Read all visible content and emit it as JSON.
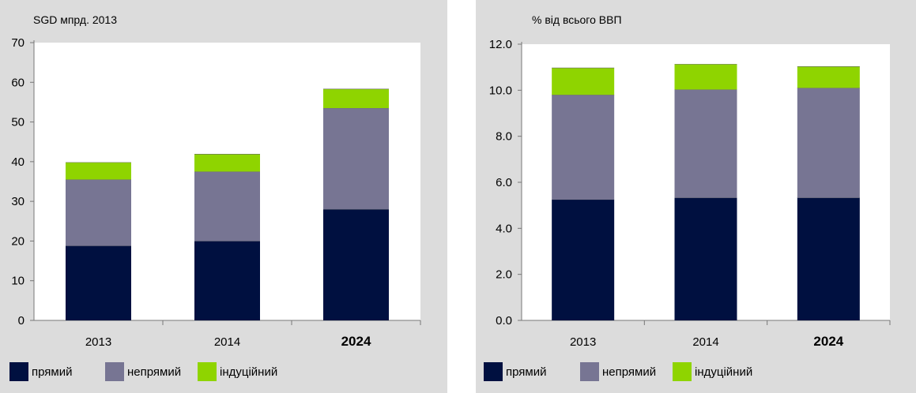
{
  "legend": [
    {
      "label": "прямий",
      "color": "#001040"
    },
    {
      "label": "непрямий",
      "color": "#777593"
    },
    {
      "label": "індуційний",
      "color": "#8fd400"
    }
  ],
  "chart_data": [
    {
      "type": "bar",
      "stacked": true,
      "unit_label": "SGD мпрд. 2013",
      "categories": [
        "2013",
        "2014",
        "2024"
      ],
      "bold_categories": [
        "2024"
      ],
      "yticks": [
        "0",
        "10",
        "20",
        "30",
        "40",
        "50",
        "60",
        "70"
      ],
      "ylim": [
        0,
        70
      ],
      "grid": false,
      "legend_position": "bottom",
      "series": [
        {
          "name": "прямий",
          "color": "#001040",
          "values": [
            18.8,
            20.0,
            28.0
          ]
        },
        {
          "name": "непрямий",
          "color": "#777593",
          "values": [
            16.7,
            17.5,
            25.5
          ]
        },
        {
          "name": "індуційний",
          "color": "#8fd400",
          "values": [
            4.3,
            4.4,
            4.8
          ]
        }
      ]
    },
    {
      "type": "bar",
      "stacked": true,
      "unit_label": "% від всього ВВП",
      "categories": [
        "2013",
        "2014",
        "2024"
      ],
      "bold_categories": [
        "2024"
      ],
      "yticks": [
        "0.0",
        "2.0",
        "4.0",
        "6.0",
        "8.0",
        "10.0",
        "12.0"
      ],
      "ylim": [
        0,
        12
      ],
      "grid": false,
      "legend_position": "bottom",
      "series": [
        {
          "name": "прямий",
          "color": "#001040",
          "values": [
            5.25,
            5.33,
            5.33
          ]
        },
        {
          "name": "непрямий",
          "color": "#777593",
          "values": [
            4.55,
            4.7,
            4.77
          ]
        },
        {
          "name": "індуційний",
          "color": "#8fd400",
          "values": [
            1.17,
            1.1,
            0.93
          ]
        }
      ]
    }
  ]
}
